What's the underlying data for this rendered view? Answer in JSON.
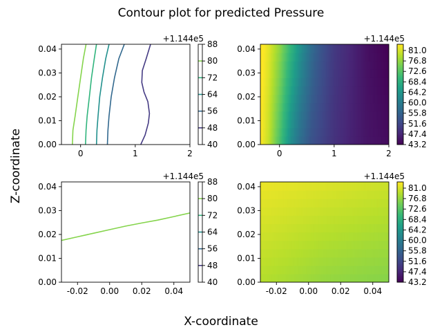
{
  "figure": {
    "title": "Contour plot for predicted Pressure",
    "xlabel": "X-coordinate",
    "ylabel": "Z-coordinate"
  },
  "chart_data": [
    {
      "id": "top-left",
      "type": "contour-lines",
      "offset_label": "+1.144e5",
      "xlim": [
        -0.35,
        2.0
      ],
      "ylim": [
        0.0,
        0.042
      ],
      "xticks": [
        "0",
        "1",
        "2"
      ],
      "xtick_values": [
        0,
        1,
        2
      ],
      "yticks": [
        "0.00",
        "0.01",
        "0.02",
        "0.03",
        "0.04"
      ],
      "ytick_values": [
        0.0,
        0.01,
        0.02,
        0.03,
        0.04
      ],
      "colorbar": {
        "min": 40,
        "max": 88,
        "ticks": [
          "88",
          "80",
          "72",
          "64",
          "56",
          "48",
          "40"
        ],
        "tick_values": [
          88,
          80,
          72,
          64,
          56,
          48,
          40
        ],
        "lines": [
          {
            "level": 80,
            "color": "#84d44b"
          },
          {
            "level": 72,
            "color": "#2fb47c"
          },
          {
            "level": 64,
            "color": "#21908d"
          },
          {
            "level": 56,
            "color": "#31688e"
          },
          {
            "level": 48,
            "color": "#443a83"
          }
        ]
      },
      "series": [
        {
          "level": 80,
          "color": "#84d44b",
          "points": [
            [
              -0.15,
              0.0
            ],
            [
              -0.14,
              0.006
            ],
            [
              -0.1,
              0.012
            ],
            [
              -0.05,
              0.02
            ],
            [
              0.0,
              0.028
            ],
            [
              0.05,
              0.036
            ],
            [
              0.1,
              0.042
            ]
          ]
        },
        {
          "level": 72,
          "color": "#2fb47c",
          "points": [
            [
              0.09,
              0.0
            ],
            [
              0.1,
              0.006
            ],
            [
              0.12,
              0.012
            ],
            [
              0.16,
              0.02
            ],
            [
              0.2,
              0.028
            ],
            [
              0.25,
              0.036
            ],
            [
              0.29,
              0.042
            ]
          ]
        },
        {
          "level": 64,
          "color": "#21908d",
          "points": [
            [
              0.29,
              0.0
            ],
            [
              0.3,
              0.006
            ],
            [
              0.32,
              0.012
            ],
            [
              0.35,
              0.02
            ],
            [
              0.4,
              0.028
            ],
            [
              0.46,
              0.036
            ],
            [
              0.52,
              0.042
            ]
          ]
        },
        {
          "level": 56,
          "color": "#31688e",
          "points": [
            [
              0.49,
              0.0
            ],
            [
              0.5,
              0.006
            ],
            [
              0.52,
              0.012
            ],
            [
              0.56,
              0.02
            ],
            [
              0.62,
              0.028
            ],
            [
              0.7,
              0.036
            ],
            [
              0.8,
              0.042
            ]
          ]
        },
        {
          "level": 48,
          "color": "#443a83",
          "points": [
            [
              1.1,
              0.0
            ],
            [
              1.18,
              0.004
            ],
            [
              1.24,
              0.009
            ],
            [
              1.26,
              0.013
            ],
            [
              1.23,
              0.018
            ],
            [
              1.16,
              0.022
            ],
            [
              1.12,
              0.026
            ],
            [
              1.13,
              0.031
            ],
            [
              1.2,
              0.036
            ],
            [
              1.28,
              0.042
            ]
          ]
        }
      ]
    },
    {
      "id": "top-right",
      "type": "heatmap",
      "offset_label": "+1.144e5",
      "xlim": [
        -0.35,
        2.0
      ],
      "ylim": [
        0.0,
        0.042
      ],
      "xticks": [
        "0",
        "1",
        "2"
      ],
      "xtick_values": [
        0,
        1,
        2
      ],
      "yticks": [
        "0.00",
        "0.01",
        "0.02",
        "0.03",
        "0.04"
      ],
      "ytick_values": [
        0.0,
        0.01,
        0.02,
        0.03,
        0.04
      ],
      "field": {
        "x": [
          -0.35,
          -0.2,
          0.0,
          0.2,
          0.4,
          0.6,
          0.8,
          1.0,
          1.3,
          1.6,
          2.0
        ],
        "values_bottom": [
          83.5,
          80,
          72,
          63,
          57,
          53,
          51,
          49,
          47,
          45.5,
          44.5
        ],
        "values_top": [
          84.5,
          82,
          77,
          70,
          63,
          57,
          53,
          50,
          47.5,
          45,
          43.2
        ]
      },
      "colorbar": {
        "min": 43.2,
        "max": 83.5,
        "ticks": [
          "81.0",
          "76.8",
          "72.6",
          "68.4",
          "64.2",
          "60.0",
          "55.8",
          "51.6",
          "47.4",
          "43.2"
        ],
        "tick_values": [
          81.0,
          76.8,
          72.6,
          68.4,
          64.2,
          60.0,
          55.8,
          51.6,
          47.4,
          43.2
        ]
      }
    },
    {
      "id": "bottom-left",
      "type": "contour-lines",
      "offset_label": "+1.144e5",
      "xlim": [
        -0.03,
        0.05
      ],
      "ylim": [
        0.0,
        0.042
      ],
      "xticks": [
        "-0.02",
        "0.00",
        "0.02",
        "0.04"
      ],
      "xtick_values": [
        -0.02,
        0.0,
        0.02,
        0.04
      ],
      "yticks": [
        "0.00",
        "0.01",
        "0.02",
        "0.03",
        "0.04"
      ],
      "ytick_values": [
        0.0,
        0.01,
        0.02,
        0.03,
        0.04
      ],
      "colorbar": {
        "min": 40,
        "max": 88,
        "ticks": [
          "88",
          "80",
          "72",
          "64",
          "56",
          "48",
          "40"
        ],
        "tick_values": [
          88,
          80,
          72,
          64,
          56,
          48,
          40
        ],
        "lines": [
          {
            "level": 80,
            "color": "#84d44b"
          },
          {
            "level": 72,
            "color": "#2fb47c"
          },
          {
            "level": 64,
            "color": "#21908d"
          },
          {
            "level": 56,
            "color": "#31688e"
          },
          {
            "level": 48,
            "color": "#443a83"
          }
        ]
      },
      "series": [
        {
          "level": 80,
          "color": "#84d44b",
          "points": [
            [
              -0.03,
              0.0175
            ],
            [
              -0.02,
              0.019
            ],
            [
              -0.01,
              0.0205
            ],
            [
              0.0,
              0.022
            ],
            [
              0.01,
              0.0235
            ],
            [
              0.02,
              0.0248
            ],
            [
              0.03,
              0.026
            ],
            [
              0.04,
              0.0275
            ],
            [
              0.05,
              0.029
            ]
          ]
        }
      ]
    },
    {
      "id": "bottom-right",
      "type": "heatmap",
      "offset_label": "+1.144e5",
      "xlim": [
        -0.03,
        0.05
      ],
      "ylim": [
        0.0,
        0.042
      ],
      "xticks": [
        "-0.02",
        "0.00",
        "0.02",
        "0.04"
      ],
      "xtick_values": [
        -0.02,
        0.0,
        0.02,
        0.04
      ],
      "yticks": [
        "0.00",
        "0.01",
        "0.02",
        "0.03",
        "0.04"
      ],
      "ytick_values": [
        0.0,
        0.01,
        0.02,
        0.03,
        0.04
      ],
      "field": {
        "x": [
          -0.03,
          -0.01,
          0.01,
          0.03,
          0.05
        ],
        "values_bottom": [
          79,
          78,
          77,
          76.5,
          76
        ],
        "values_top": [
          82.5,
          82,
          81.5,
          81,
          80.5
        ]
      },
      "colorbar": {
        "min": 43.2,
        "max": 83.5,
        "ticks": [
          "81.0",
          "76.8",
          "72.6",
          "68.4",
          "64.2",
          "60.0",
          "55.8",
          "51.6",
          "47.4",
          "43.2"
        ],
        "tick_values": [
          81.0,
          76.8,
          72.6,
          68.4,
          64.2,
          60.0,
          55.8,
          51.6,
          47.4,
          43.2
        ]
      }
    }
  ]
}
